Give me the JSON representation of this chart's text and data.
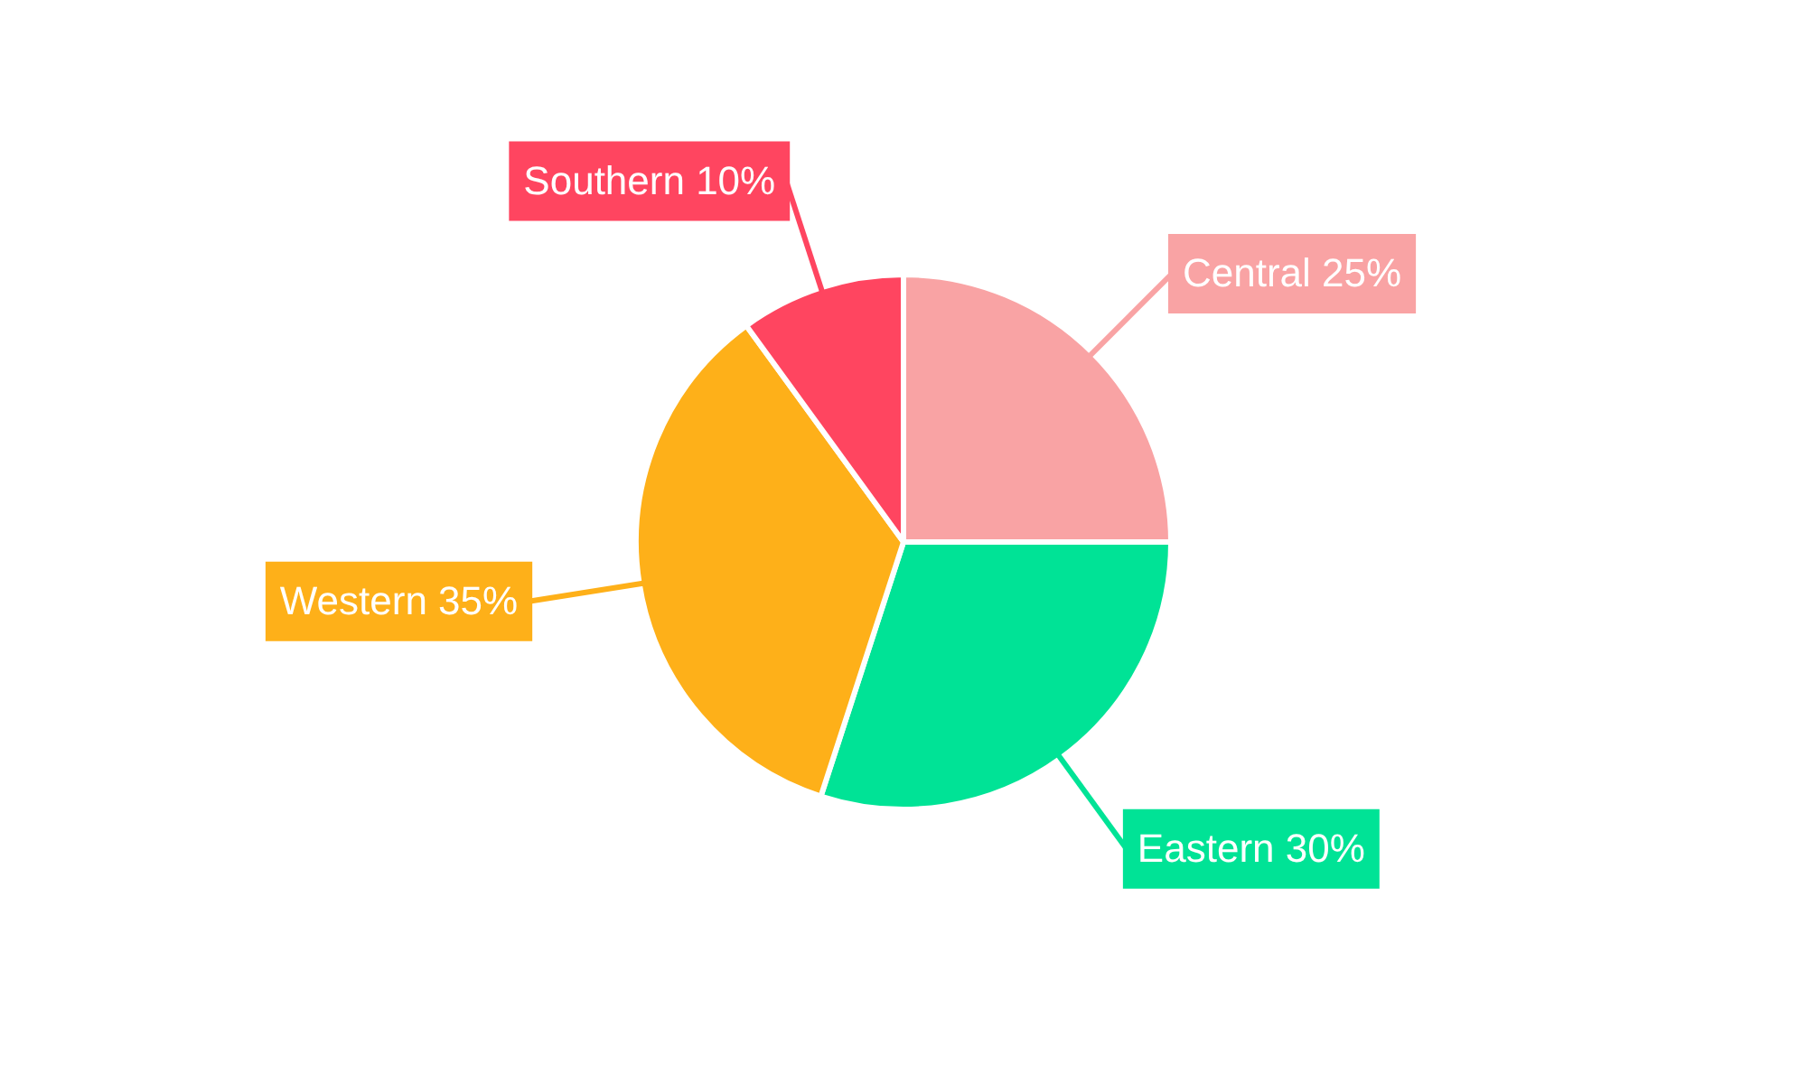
{
  "chart_data": {
    "type": "pie",
    "categories": [
      "Central",
      "Eastern",
      "Western",
      "Southern"
    ],
    "values": [
      25,
      30,
      35,
      10
    ],
    "colors": [
      "#f9a3a4",
      "#00e396",
      "#feb019",
      "#ff4560"
    ],
    "value_labels": [
      "25%",
      "30%",
      "35%",
      "10%"
    ],
    "legend": false
  }
}
